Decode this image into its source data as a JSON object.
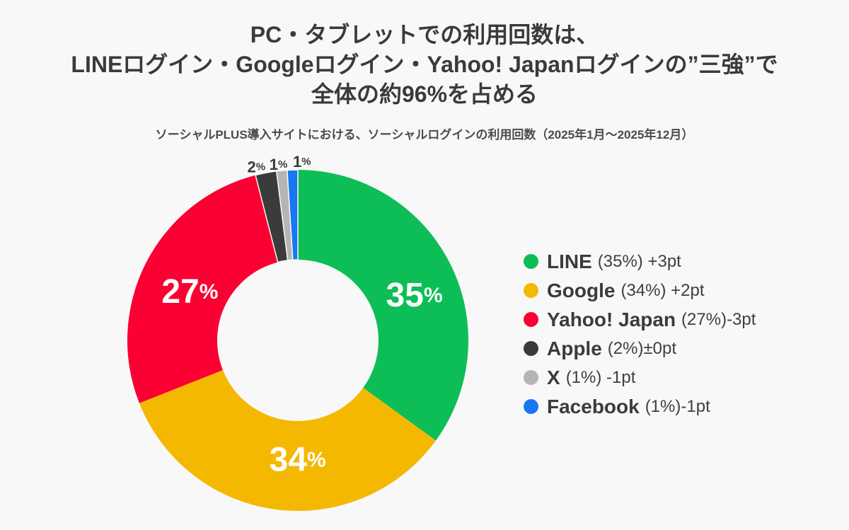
{
  "title": {
    "line1": "PC・タブレットでの利用回数は、",
    "line2": "LINEログイン・Googleログイン・Yahoo! Japanログインの”三強”で",
    "line3": "全体の約96%を占める"
  },
  "subtitle": "ソーシャルPLUS導入サイトにおける、ソーシャルログインの利用回数（2025年1月～2025年12月）",
  "chart_data": {
    "type": "pie",
    "donut": true,
    "unit": "%",
    "title": "ソーシャルPLUS導入サイトにおける、ソーシャルログインの利用回数（2025年1月～2025年12月）",
    "start_angle_deg": 0,
    "direction": "clockwise",
    "legend_position": "right",
    "background_color": "#F8F8F8",
    "segments": [
      {
        "name": "LINE",
        "value_pct": 35,
        "change": "+3pt",
        "legend_text": "(35%) +3pt",
        "color": "#0DBE57"
      },
      {
        "name": "Google",
        "value_pct": 34,
        "change": "+2pt",
        "legend_text": "(34%) +2pt",
        "color": "#F5B800"
      },
      {
        "name": "Yahoo! Japan",
        "value_pct": 27,
        "change": "-3pt",
        "legend_text": "(27%)-3pt",
        "color": "#FB0032"
      },
      {
        "name": "Apple",
        "value_pct": 2,
        "change": "±0pt",
        "legend_text": "(2%)±0pt",
        "color": "#3B3B3B"
      },
      {
        "name": "X",
        "value_pct": 1,
        "change": "-1pt",
        "legend_text": "(1%) -1pt",
        "color": "#B5B5B5"
      },
      {
        "name": "Facebook",
        "value_pct": 1,
        "change": "-1pt",
        "legend_text": "(1%)-1pt",
        "color": "#1877F2"
      }
    ]
  }
}
